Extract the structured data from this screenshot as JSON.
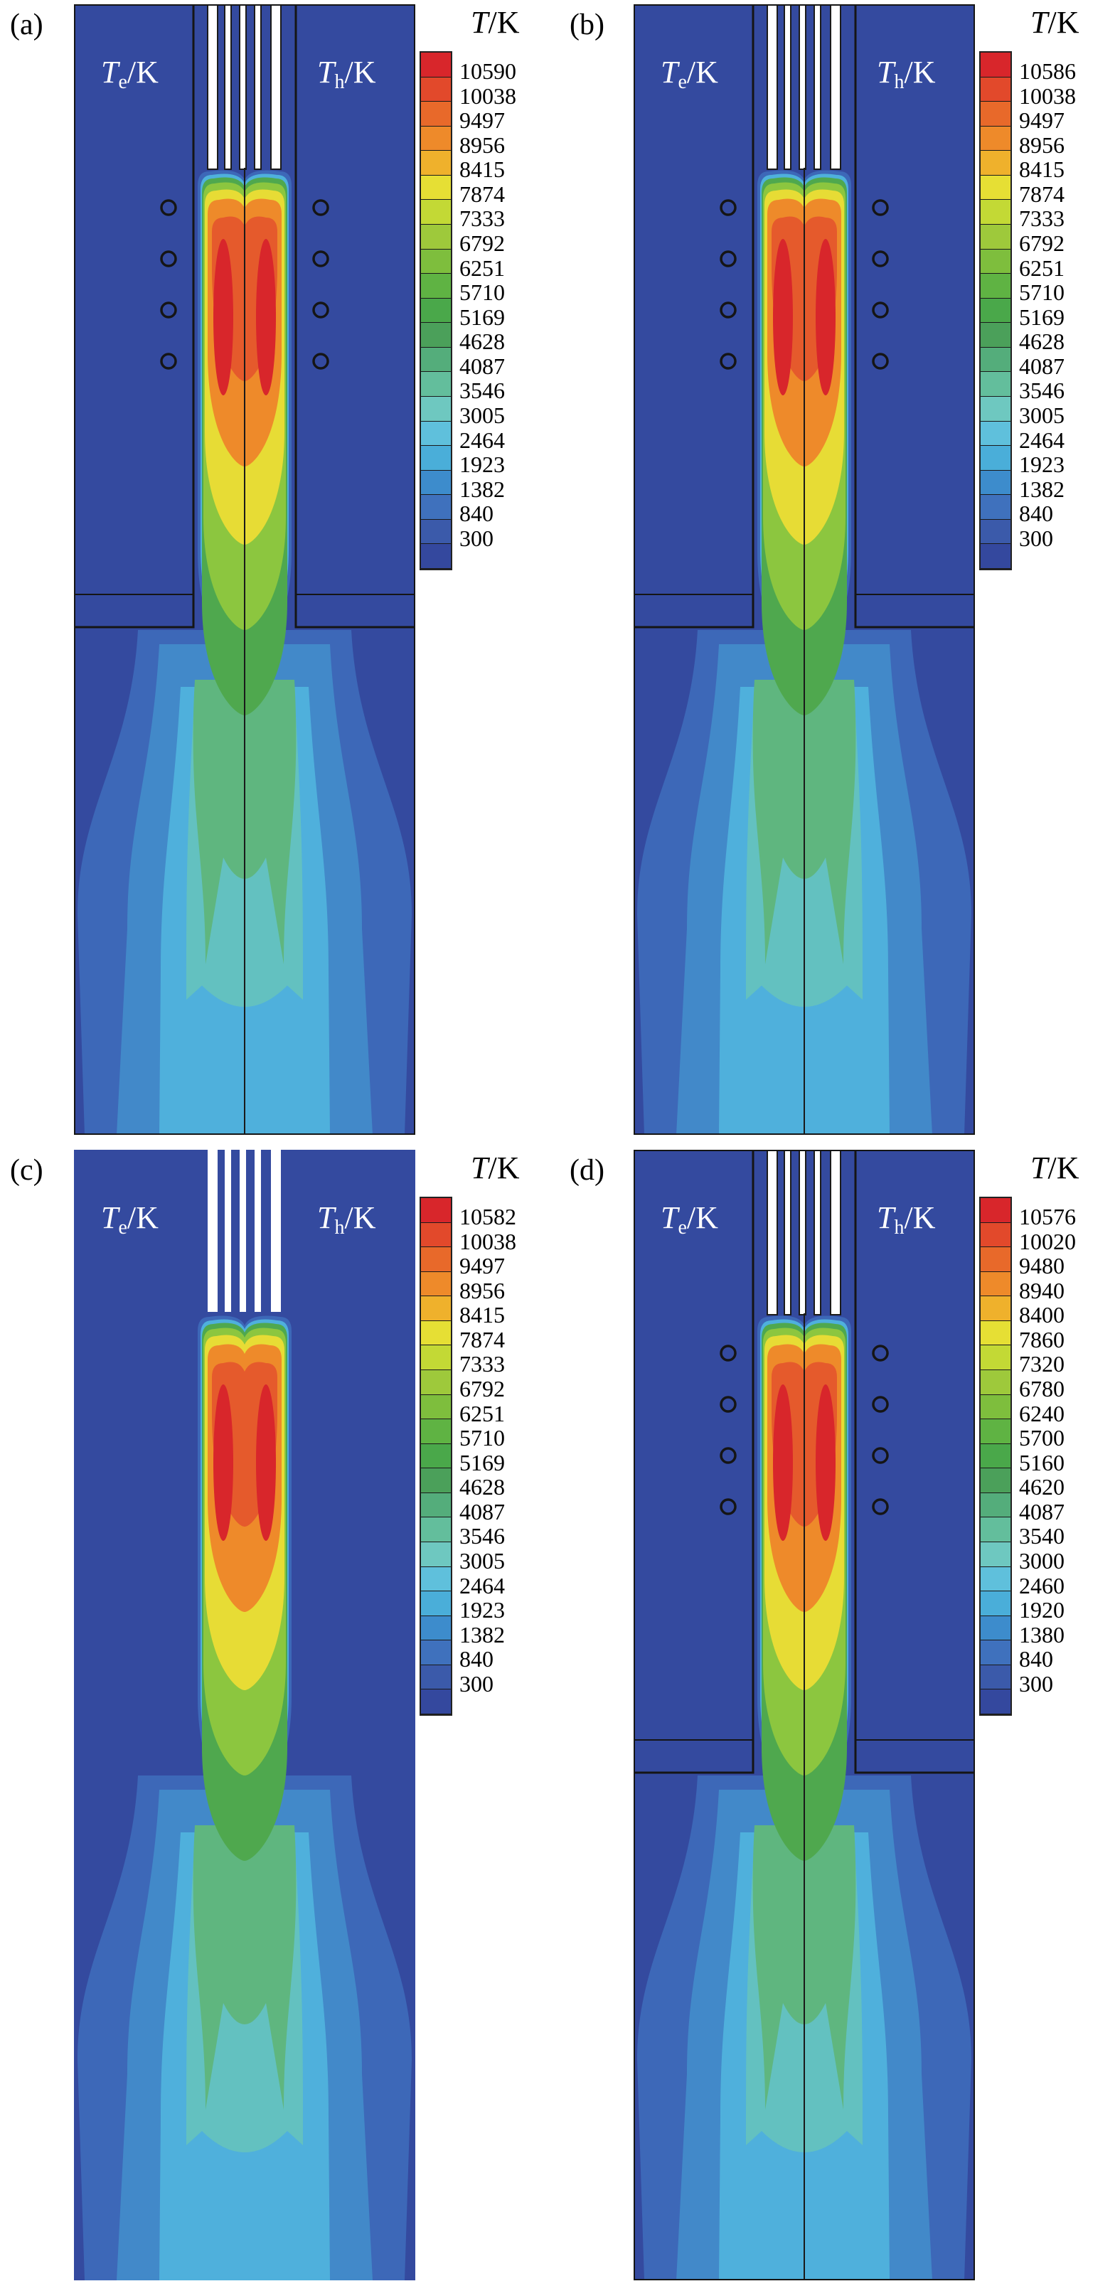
{
  "colorbar_colors": [
    "#d8262b",
    "#e2492b",
    "#e8692a",
    "#ee8a2a",
    "#efb12c",
    "#e6df34",
    "#c3d935",
    "#9ec93b",
    "#7ebe3d",
    "#5fb343",
    "#4aa84a",
    "#4ba05a",
    "#54ad7b",
    "#63be9c",
    "#6ec8c0",
    "#5fc0dc",
    "#4aaed9",
    "#3d8ccc",
    "#3f71bd",
    "#3b5aaa",
    "#34489e"
  ],
  "plasma_colors": {
    "bg": "#344a9f",
    "c1": "#3d68b8",
    "c2": "#4289c9",
    "c3": "#4fb0dc",
    "c4": "#63c1c0",
    "c5": "#5fb67f",
    "c6": "#4fa84e",
    "c7": "#8cc63f",
    "c8": "#e7dc35",
    "c9": "#ee8a2a",
    "c10": "#e55a2c",
    "c11": "#d8262b"
  },
  "panels": [
    {
      "label": "(a)",
      "te_symbol": "T",
      "te_sub": "e",
      "te_unit": "/K",
      "th_symbol": "T",
      "th_sub": "h",
      "th_unit": "/K",
      "legend_symbol": "T",
      "legend_unit": "/K",
      "ticks": [
        "10590",
        "10038",
        "9497",
        "8956",
        "8415",
        "7874",
        "7333",
        "6792",
        "6251",
        "5710",
        "5169",
        "4628",
        "4087",
        "3546",
        "3005",
        "2464",
        "1923",
        "1382",
        "840",
        "300"
      ],
      "has_coils": true,
      "has_walls": true
    },
    {
      "label": "(b)",
      "te_symbol": "T",
      "te_sub": "e",
      "te_unit": "/K",
      "th_symbol": "T",
      "th_sub": "h",
      "th_unit": "/K",
      "legend_symbol": "T",
      "legend_unit": "/K",
      "ticks": [
        "10586",
        "10038",
        "9497",
        "8956",
        "8415",
        "7874",
        "7333",
        "6792",
        "6251",
        "5710",
        "5169",
        "4628",
        "4087",
        "3546",
        "3005",
        "2464",
        "1923",
        "1382",
        "840",
        "300"
      ],
      "has_coils": true,
      "has_walls": true
    },
    {
      "label": "(c)",
      "te_symbol": "T",
      "te_sub": "e",
      "te_unit": "/K",
      "th_symbol": "T",
      "th_sub": "h",
      "th_unit": "/K",
      "legend_symbol": "T",
      "legend_unit": "/K",
      "ticks": [
        "10582",
        "10038",
        "9497",
        "8956",
        "8415",
        "7874",
        "7333",
        "6792",
        "6251",
        "5710",
        "5169",
        "4628",
        "4087",
        "3546",
        "3005",
        "2464",
        "1923",
        "1382",
        "840",
        "300"
      ],
      "has_coils": false,
      "has_walls": false
    },
    {
      "label": "(d)",
      "te_symbol": "T",
      "te_sub": "e",
      "te_unit": "/K",
      "th_symbol": "T",
      "th_sub": "h",
      "th_unit": "/K",
      "legend_symbol": "T",
      "legend_unit": "/K",
      "ticks": [
        "10576",
        "10020",
        "9480",
        "8940",
        "8400",
        "7860",
        "7320",
        "6780",
        "6240",
        "5700",
        "5160",
        "4620",
        "4087",
        "3540",
        "3000",
        "2460",
        "1920",
        "1380",
        "840",
        "300"
      ],
      "has_coils": true,
      "has_walls": true
    }
  ]
}
